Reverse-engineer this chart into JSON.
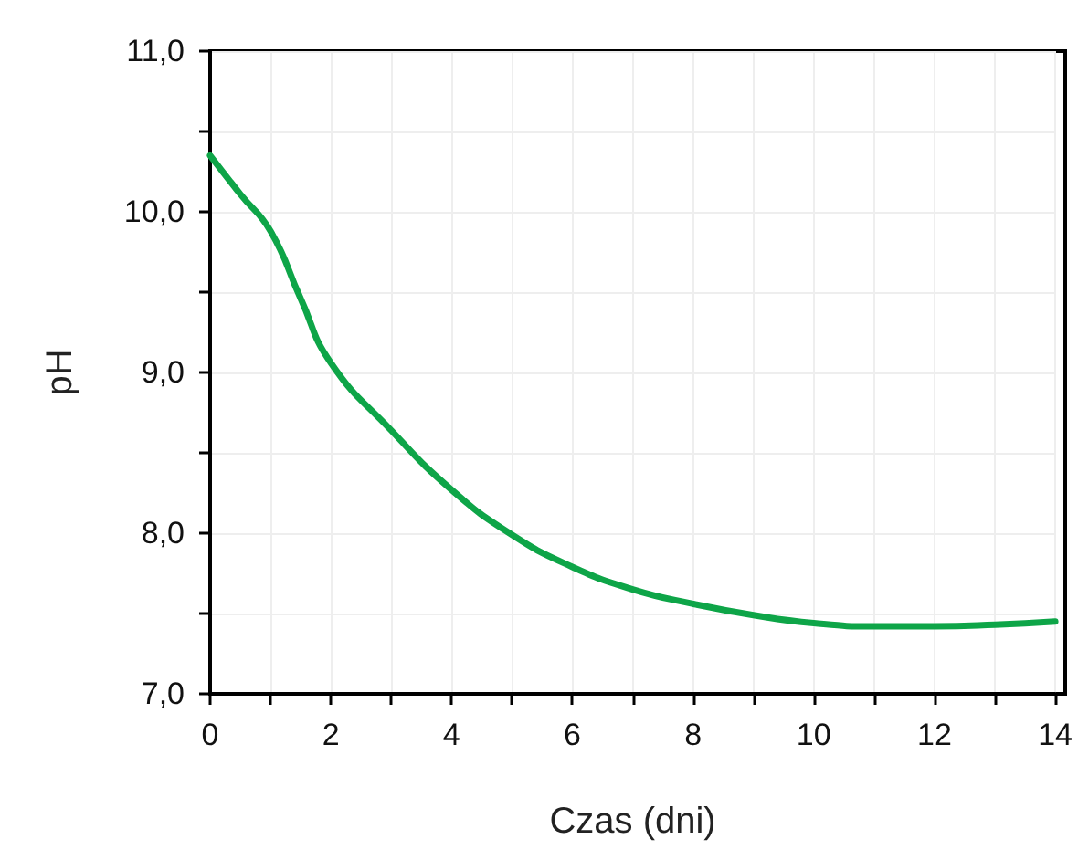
{
  "chart_data": {
    "type": "line",
    "xlabel": "Czas (dni)",
    "ylabel": "pH",
    "x": [
      0,
      0.5,
      1,
      1.5,
      2,
      3,
      4,
      5,
      6,
      7,
      8,
      9,
      10,
      11,
      12,
      13,
      14
    ],
    "series": [
      {
        "color": "#0ea548",
        "values": [
          10.35,
          10.11,
          9.88,
          9.46,
          9.06,
          8.64,
          8.27,
          7.99,
          7.79,
          7.65,
          7.56,
          7.49,
          7.44,
          7.42,
          7.42,
          7.43,
          7.45
        ]
      }
    ],
    "xlim": [
      0,
      14
    ],
    "ylim": [
      7,
      11
    ],
    "xticks": [
      0,
      {
        "value": 1,
        "label": null
      },
      2,
      {
        "value": 3,
        "label": null
      },
      4,
      {
        "value": 5,
        "label": null
      },
      6,
      {
        "value": 7,
        "label": null
      },
      8,
      {
        "value": 9,
        "label": null
      },
      10,
      {
        "value": 11,
        "label": null
      },
      12,
      {
        "value": 13,
        "label": null
      },
      14
    ],
    "yticks": [
      {
        "value": 7,
        "label": "7,0"
      },
      {
        "value": 7.5,
        "label": null
      },
      {
        "value": 8,
        "label": "8,0"
      },
      {
        "value": 8.5,
        "label": null
      },
      {
        "value": 9,
        "label": "9,0"
      },
      {
        "value": 9.5,
        "label": null
      },
      {
        "value": 10,
        "label": "10,0"
      },
      {
        "value": 10.5,
        "label": null
      },
      {
        "value": 11,
        "label": "11,0"
      }
    ],
    "grid": true,
    "marker": "none",
    "line_style": "solid"
  }
}
